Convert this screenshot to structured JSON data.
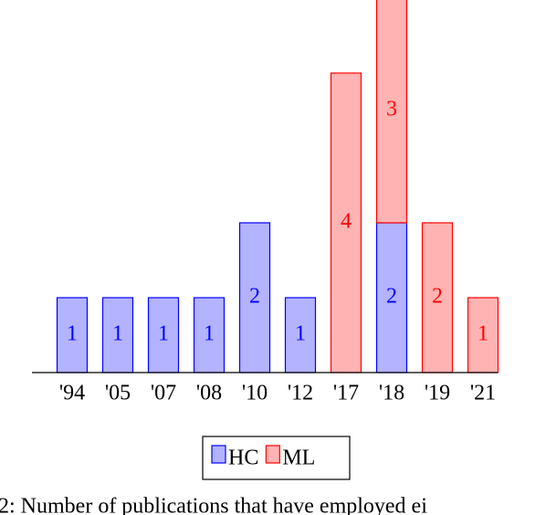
{
  "chart_data": {
    "type": "stacked_bar",
    "categories": [
      "'94",
      "'05",
      "'07",
      "'08",
      "'10",
      "'12",
      "'17",
      "'18",
      "'19",
      "'21"
    ],
    "series": [
      {
        "name": "HC",
        "color": "#b3b3ff",
        "edge": "#0000ff",
        "values": [
          1,
          1,
          1,
          1,
          2,
          1,
          null,
          2,
          null,
          null
        ]
      },
      {
        "name": "ML",
        "color": "#ffb3b3",
        "edge": "#ff0000",
        "values": [
          null,
          null,
          null,
          null,
          null,
          null,
          4,
          3,
          2,
          1
        ]
      }
    ],
    "ylim": [
      0,
      5
    ],
    "caption": "2: Number of publications that have employed ei"
  }
}
